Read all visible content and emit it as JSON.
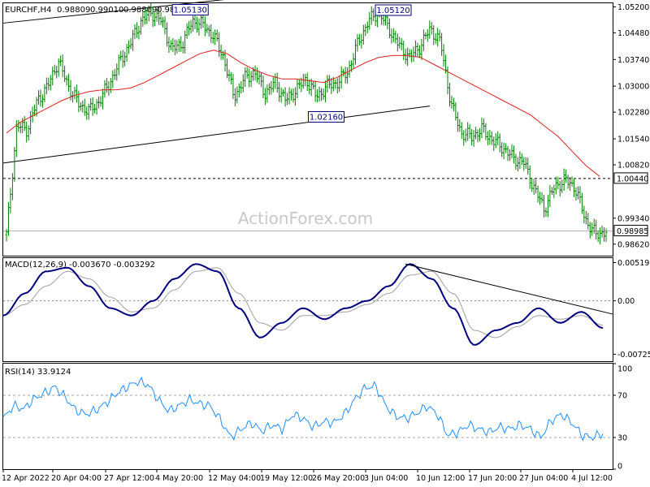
{
  "chart_data": {
    "type": "ohlc",
    "symbol": "EURCHF,H4",
    "header_ohlc": [
      "0.98809",
      "0.99010",
      "0.98809",
      "0.98985"
    ],
    "watermark": "ActionForex.com",
    "price_pane": {
      "ylim": [
        0.983,
        1.053
      ],
      "yticks": [
        "1.05200",
        "1.04480",
        "1.03740",
        "1.03000",
        "1.02280",
        "1.01540",
        "1.00820",
        "0.99340",
        "0.98620"
      ],
      "current_price": "0.98985",
      "hline_price": "1.00440",
      "annotations": [
        {
          "label": "1.05130",
          "x": 0.307,
          "y": 1.0513
        },
        {
          "label": "1.05120",
          "x": 0.64,
          "y": 1.0512
        },
        {
          "label": "1.02160",
          "x": 0.53,
          "y": 1.0216
        }
      ],
      "trendlines": [
        {
          "x1": 0.0,
          "y1": 1.0475,
          "x2": 0.39,
          "y2": 1.0545
        },
        {
          "x1": 0.0,
          "y1": 1.0087,
          "x2": 0.7,
          "y2": 1.0245
        }
      ],
      "series": [
        0.9888,
        1.019,
        1.018,
        1.026,
        1.03,
        1.037,
        1.03,
        1.025,
        1.023,
        1.026,
        1.031,
        1.037,
        1.042,
        1.048,
        1.0505,
        1.048,
        1.04,
        1.042,
        1.048,
        1.047,
        1.044,
        1.038,
        1.027,
        1.032,
        1.034,
        1.028,
        1.031,
        1.026,
        1.029,
        1.032,
        1.027,
        1.03,
        1.031,
        1.034,
        1.042,
        1.048,
        1.0505,
        1.046,
        1.041,
        1.038,
        1.041,
        1.046,
        1.042,
        1.025,
        1.017,
        1.016,
        1.018,
        1.015,
        1.013,
        1.01,
        1.009,
        1.002,
        0.996,
        1.002,
        1.004,
        1.002,
        0.993,
        0.9888,
        0.9898
      ],
      "ma": [
        1.017,
        1.02,
        1.022,
        1.024,
        1.026,
        1.0275,
        1.0285,
        1.029,
        1.029,
        1.0295,
        1.031,
        1.033,
        1.035,
        1.037,
        1.039,
        1.04,
        1.039,
        1.0365,
        1.0345,
        1.033,
        1.032,
        1.032,
        1.0315,
        1.031,
        1.0325,
        1.0345,
        1.0365,
        1.038,
        1.0385,
        1.0385,
        1.038,
        1.036,
        1.034,
        1.032,
        1.03,
        1.028,
        1.026,
        1.024,
        1.022,
        1.019,
        1.016,
        1.012,
        1.008,
        1.005
      ]
    },
    "macd_pane": {
      "label": "MACD(12,26,9) -0.003670 -0.003292",
      "ylim": [
        -0.0082,
        0.0058
      ],
      "yticks": [
        "0.005196",
        "0.00",
        "-0.007259"
      ],
      "trendline": {
        "x1": 0.66,
        "y1": 0.005,
        "x2": 1.0,
        "y2": -0.0018
      },
      "macd": [
        -0.002,
        0.001,
        0.004,
        0.0045,
        0.002,
        -0.001,
        -0.002,
        0.0,
        0.003,
        0.005,
        0.004,
        -0.001,
        -0.005,
        -0.003,
        -0.001,
        -0.0025,
        -0.001,
        0.0,
        0.002,
        0.005,
        0.003,
        -0.001,
        -0.006,
        -0.004,
        -0.003,
        -0.001,
        -0.003,
        -0.0015,
        -0.0037
      ],
      "signal": [
        -0.002,
        -0.0005,
        0.002,
        0.004,
        0.003,
        0.0005,
        -0.0015,
        -0.001,
        0.0015,
        0.004,
        0.0045,
        0.001,
        -0.003,
        -0.004,
        -0.002,
        -0.002,
        -0.0015,
        -0.0005,
        0.001,
        0.0035,
        0.004,
        0.001,
        -0.004,
        -0.005,
        -0.0035,
        -0.002,
        -0.0025,
        -0.002,
        -0.0033
      ]
    },
    "rsi_pane": {
      "label": "RSI(14) 33.9124",
      "ylim": [
        0,
        100
      ],
      "yticks": [
        "100",
        "70",
        "30",
        "0"
      ],
      "levels": [
        70,
        30
      ],
      "rsi": [
        48,
        60,
        57,
        67,
        72,
        78,
        68,
        56,
        52,
        56,
        63,
        72,
        78,
        83,
        80,
        66,
        55,
        60,
        66,
        62,
        60,
        47,
        30,
        38,
        44,
        36,
        42,
        38,
        52,
        48,
        40,
        45,
        44,
        52,
        66,
        77,
        79,
        60,
        50,
        48,
        53,
        60,
        52,
        32,
        35,
        42,
        38,
        35,
        40,
        38,
        42,
        38,
        30,
        46,
        52,
        44,
        32,
        30,
        34
      ]
    },
    "xticks": [
      "12 Apr 2022",
      "20 Apr 04:00",
      "27 Apr 12:00",
      "4 May 20:00",
      "12 May 04:00",
      "19 May 12:00",
      "26 May 20:00",
      "3 Jun 04:00",
      "10 Jun 12:00",
      "17 Jun 20:00",
      "27 Jun 04:00",
      "4 Jul 12:00"
    ]
  }
}
